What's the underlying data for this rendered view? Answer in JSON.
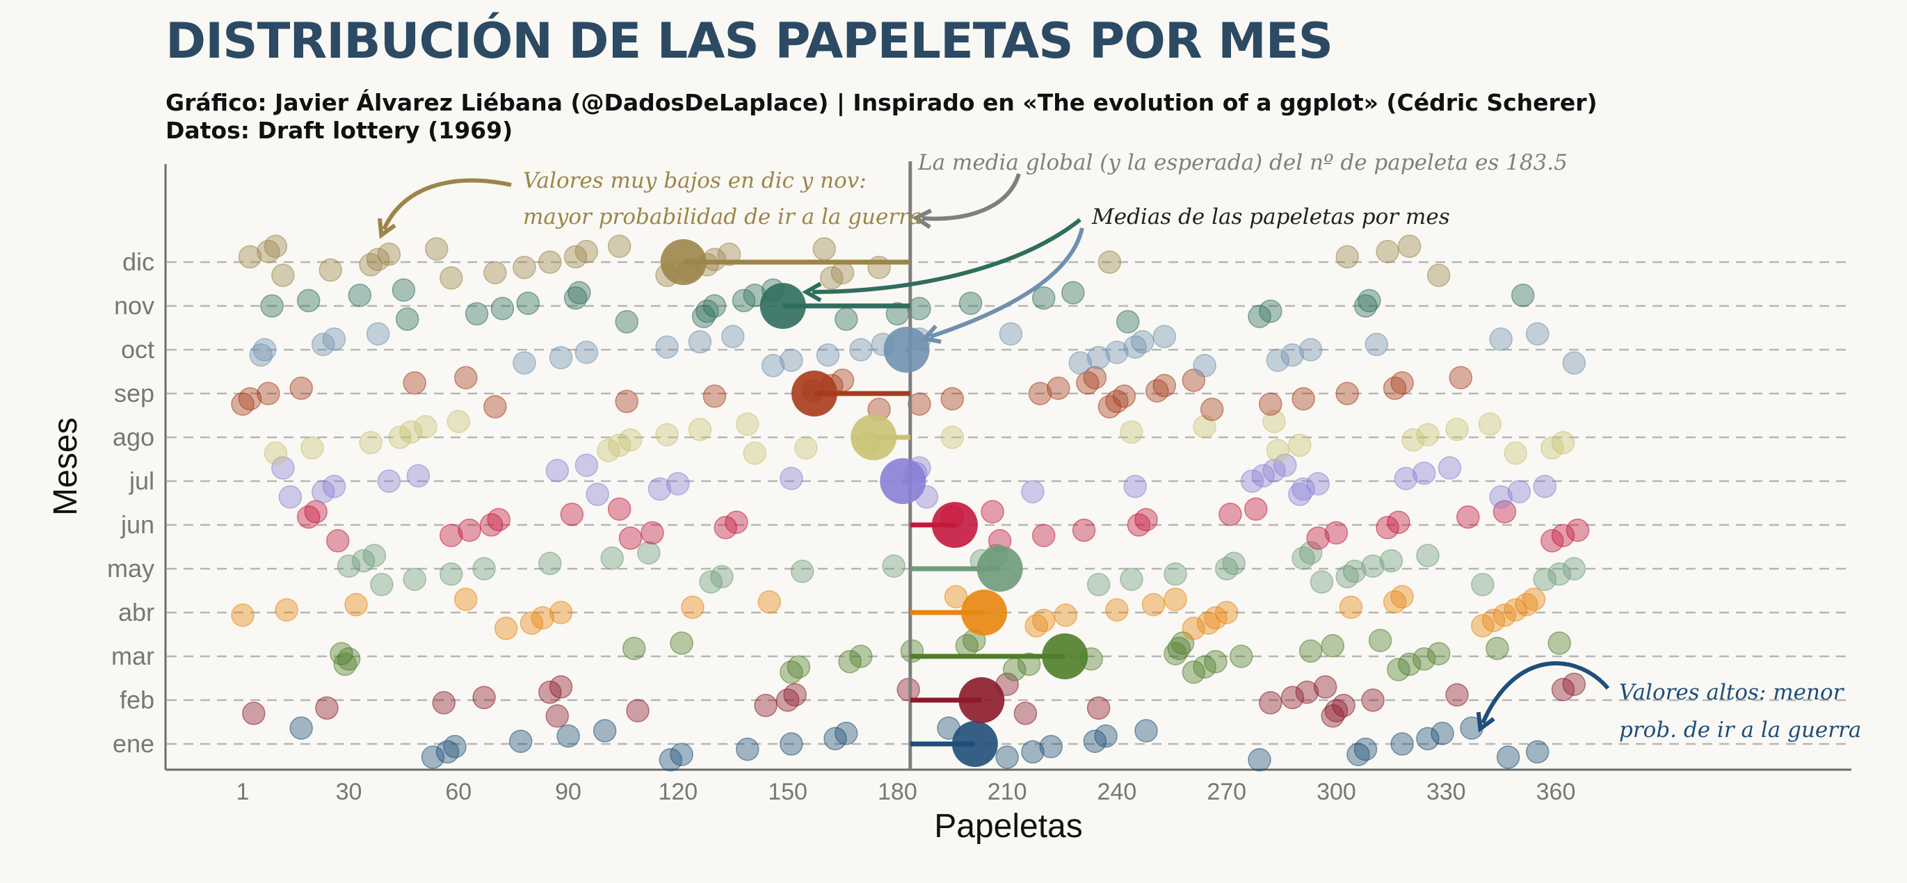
{
  "title": "DISTRIBUCIÓN DE LAS PAPELETAS POR MES",
  "subtitle_line1": "Gráfico: Javier Álvarez Liébana (@DadosDeLaplace) | Inspirado en «The evolution of a ggplot» (Cédric Scherer)",
  "subtitle_line2": "Datos: Draft lottery (1969)",
  "annotations": {
    "global_mean": "La media global (y la esperada) del nº de papeleta es 183.5",
    "low_line1": "Valores muy bajos en dic y nov:",
    "low_line2": "mayor probabilidad de ir a la guerra",
    "means_label": "Medias de las papeletas por mes",
    "high_line1": "Valores altos: menor",
    "high_line2": "prob. de ir a la guerra"
  },
  "colors": {
    "title": "#2c4a63",
    "background": "#f9f8f4",
    "axis": "#6b6b6b",
    "mean_line": "#7f7f7f",
    "grid": "#b5b5b5"
  },
  "chart_data": {
    "type": "scatter",
    "xlabel": "Papeletas",
    "ylabel": "Meses",
    "xlim": [
      -20,
      441
    ],
    "x_ticks": [
      1,
      30,
      60,
      90,
      120,
      150,
      180,
      210,
      240,
      270,
      300,
      330,
      360
    ],
    "global_mean": 183.5,
    "grid": "horizontal dashed",
    "categories": [
      "ene",
      "feb",
      "mar",
      "abr",
      "may",
      "jun",
      "jul",
      "ago",
      "sep",
      "oct",
      "nov",
      "dic"
    ],
    "series": [
      {
        "category": "ene",
        "color": "#1f4e79",
        "mean": 201.2,
        "values": [
          17,
          53,
          57,
          59,
          77,
          90,
          100,
          118,
          121,
          139,
          151,
          163,
          166,
          194,
          210,
          217,
          222,
          234,
          237,
          248,
          279,
          306,
          308,
          318,
          325,
          329,
          337,
          347,
          355
        ]
      },
      {
        "category": "feb",
        "color": "#8b1a2b",
        "mean": 203.0,
        "values": [
          4,
          24,
          56,
          67,
          85,
          88,
          87,
          109,
          144,
          150,
          152,
          183,
          210,
          215,
          235,
          282,
          288,
          292,
          297,
          299,
          300,
          302,
          310,
          333,
          362,
          365
        ]
      },
      {
        "category": "mar",
        "color": "#4f7d2a",
        "mean": 225.8,
        "values": [
          29,
          30,
          28,
          108,
          121,
          151,
          153,
          167,
          170,
          184,
          199,
          201,
          212,
          216,
          233,
          256,
          257,
          258,
          261,
          264,
          267,
          274,
          293,
          299,
          312,
          317,
          320,
          324,
          328,
          344,
          361
        ]
      },
      {
        "category": "abr",
        "color": "#e8850e",
        "mean": 203.7,
        "values": [
          1,
          13,
          32,
          62,
          73,
          80,
          83,
          88,
          124,
          145,
          196,
          218,
          220,
          226,
          240,
          250,
          256,
          261,
          265,
          267,
          270,
          304,
          316,
          318,
          340,
          343,
          346,
          349,
          352,
          354
        ]
      },
      {
        "category": "may",
        "color": "#6d9b7a",
        "mean": 208.0,
        "values": [
          30,
          34,
          37,
          39,
          48,
          58,
          67,
          85,
          102,
          112,
          129,
          132,
          154,
          179,
          203,
          207,
          235,
          244,
          256,
          270,
          272,
          291,
          293,
          296,
          303,
          305,
          310,
          315,
          325,
          340,
          357,
          361,
          365
        ]
      },
      {
        "category": "jun",
        "color": "#c4173e",
        "mean": 195.7,
        "values": [
          19,
          21,
          27,
          58,
          63,
          69,
          71,
          91,
          104,
          107,
          113,
          133,
          136,
          195,
          206,
          208,
          220,
          231,
          246,
          248,
          271,
          278,
          295,
          300,
          314,
          317,
          336,
          346,
          359,
          362,
          366
        ]
      },
      {
        "category": "jul",
        "color": "#8a7fd6",
        "mean": 181.5,
        "values": [
          12,
          14,
          23,
          26,
          41,
          49,
          87,
          95,
          98,
          115,
          120,
          151,
          185,
          186,
          188,
          217,
          245,
          277,
          280,
          283,
          286,
          290,
          291,
          295,
          319,
          324,
          331,
          345,
          350,
          357
        ]
      },
      {
        "category": "ago",
        "color": "#c9c273",
        "mean": 173.5,
        "values": [
          10,
          20,
          36,
          44,
          47,
          51,
          60,
          101,
          104,
          107,
          117,
          126,
          139,
          141,
          155,
          172,
          195,
          244,
          264,
          283,
          284,
          290,
          321,
          325,
          333,
          342,
          349,
          359,
          362
        ]
      },
      {
        "category": "sep",
        "color": "#a83b1c",
        "mean": 157.3,
        "values": [
          1,
          3,
          8,
          17,
          48,
          62,
          70,
          106,
          130,
          157,
          162,
          165,
          175,
          186,
          195,
          219,
          224,
          232,
          234,
          238,
          240,
          242,
          251,
          253,
          261,
          266,
          282,
          291,
          303,
          316,
          318,
          334
        ]
      },
      {
        "category": "oct",
        "color": "#7090b0",
        "mean": 182.5,
        "values": [
          6,
          7,
          23,
          26,
          38,
          78,
          88,
          95,
          117,
          126,
          135,
          146,
          151,
          161,
          170,
          176,
          186,
          211,
          230,
          235,
          240,
          245,
          247,
          253,
          264,
          284,
          288,
          293,
          311,
          345,
          355,
          365
        ]
      },
      {
        "category": "nov",
        "color": "#2f6e5d",
        "mean": 148.7,
        "values": [
          9,
          19,
          33,
          45,
          46,
          65,
          72,
          79,
          92,
          93,
          106,
          127,
          128,
          130,
          138,
          141,
          146,
          166,
          180,
          186,
          200,
          220,
          228,
          243,
          279,
          282,
          308,
          309,
          351
        ]
      },
      {
        "category": "dic",
        "color": "#9c8549",
        "mean": 121.5,
        "values": [
          3,
          8,
          10,
          12,
          25,
          36,
          38,
          41,
          54,
          58,
          70,
          78,
          85,
          92,
          95,
          104,
          117,
          123,
          128,
          130,
          134,
          160,
          162,
          165,
          175,
          238,
          303,
          314,
          320,
          328
        ]
      }
    ]
  }
}
